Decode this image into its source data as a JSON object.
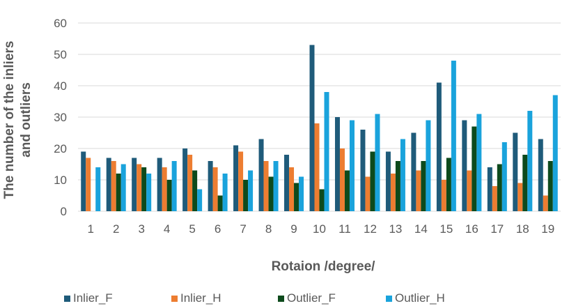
{
  "chart_data": {
    "type": "bar",
    "xlabel": "Rotaion /degree/",
    "ylabel": "The number of the inliers and outliers",
    "ylabel_lines": [
      "The number of the inliers",
      "and outliers"
    ],
    "ylim": [
      0,
      60
    ],
    "yticks": [
      0,
      10,
      20,
      30,
      40,
      50,
      60
    ],
    "grid": true,
    "legend_position": "bottom",
    "categories": [
      "1",
      "2",
      "3",
      "4",
      "5",
      "6",
      "7",
      "8",
      "9",
      "10",
      "11",
      "12",
      "13",
      "14",
      "15",
      "16",
      "17",
      "18",
      "19"
    ],
    "series": [
      {
        "name": "Inlier_F",
        "color": "#1f5b7a",
        "values": [
          19,
          17,
          17,
          17,
          20,
          16,
          21,
          23,
          18,
          53,
          30,
          26,
          19,
          25,
          41,
          29,
          14,
          25,
          23
        ]
      },
      {
        "name": "Inlier_H",
        "color": "#ed7d31",
        "values": [
          17,
          16,
          15,
          14,
          18,
          14,
          19,
          16,
          14,
          28,
          20,
          11,
          12,
          13,
          10,
          13,
          8,
          9,
          5
        ]
      },
      {
        "name": "Outlier_F",
        "color": "#0d4a1c",
        "values": [
          0,
          12,
          14,
          10,
          13,
          5,
          10,
          11,
          9,
          7,
          13,
          19,
          16,
          16,
          17,
          27,
          15,
          18,
          16
        ]
      },
      {
        "name": "Outlier_H",
        "color": "#1aa3dc",
        "values": [
          14,
          15,
          12,
          16,
          7,
          12,
          13,
          16,
          11,
          38,
          29,
          31,
          23,
          29,
          48,
          31,
          22,
          32,
          37
        ]
      }
    ]
  }
}
